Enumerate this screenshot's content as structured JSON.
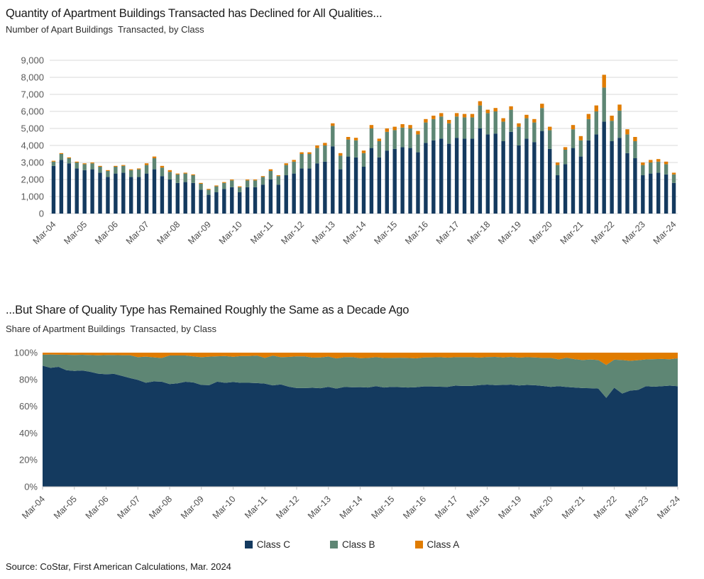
{
  "colors": {
    "class_c": "#143A5F",
    "class_b": "#5E8674",
    "class_a": "#E07C00",
    "gridline": "#D9D9D9",
    "axis_line": "#BFBFBF",
    "axis_text": "#595959",
    "tick_text": "#4D4D4D",
    "title_text": "#1A1A1A"
  },
  "legend": {
    "items": [
      {
        "label": "Class C",
        "color": "#143A5F"
      },
      {
        "label": "Class B",
        "color": "#5E8674"
      },
      {
        "label": "Class A",
        "color": "#E07C00"
      }
    ]
  },
  "source": {
    "text": "Source: CoStar, First American Calculations, Mar. 2024"
  },
  "chart_data": [
    {
      "type": "bar",
      "stacked": true,
      "title": "Quantity of Apartment Buildings Transacted has Declined for All Qualities...",
      "subtitle": "Number of Apart Buildings  Transacted, by Class",
      "ylim": [
        0,
        9000
      ],
      "ytick_step": 1000,
      "grid": true,
      "legend_position": "shared-bottom",
      "x": [
        "Mar-04",
        "Jun-04",
        "Sep-04",
        "Dec-04",
        "Mar-05",
        "Jun-05",
        "Sep-05",
        "Dec-05",
        "Mar-06",
        "Jun-06",
        "Sep-06",
        "Dec-06",
        "Mar-07",
        "Jun-07",
        "Sep-07",
        "Dec-07",
        "Mar-08",
        "Jun-08",
        "Sep-08",
        "Dec-08",
        "Mar-09",
        "Jun-09",
        "Sep-09",
        "Dec-09",
        "Mar-10",
        "Jun-10",
        "Sep-10",
        "Dec-10",
        "Mar-11",
        "Jun-11",
        "Sep-11",
        "Dec-11",
        "Mar-12",
        "Jun-12",
        "Sep-12",
        "Dec-12",
        "Mar-13",
        "Jun-13",
        "Sep-13",
        "Dec-13",
        "Mar-14",
        "Jun-14",
        "Sep-14",
        "Dec-14",
        "Mar-15",
        "Jun-15",
        "Sep-15",
        "Dec-15",
        "Mar-16",
        "Jun-16",
        "Sep-16",
        "Dec-16",
        "Mar-17",
        "Jun-17",
        "Sep-17",
        "Dec-17",
        "Mar-18",
        "Jun-18",
        "Sep-18",
        "Dec-18",
        "Mar-19",
        "Jun-19",
        "Sep-19",
        "Dec-19",
        "Mar-20",
        "Jun-20",
        "Sep-20",
        "Dec-20",
        "Mar-21",
        "Jun-21",
        "Sep-21",
        "Dec-21",
        "Mar-22",
        "Jun-22",
        "Sep-22",
        "Dec-22",
        "Mar-23",
        "Jun-23",
        "Sep-23",
        "Dec-23",
        "Mar-24"
      ],
      "x_tick_labels": [
        "Mar-04",
        "Mar-05",
        "Mar-06",
        "Mar-07",
        "Mar-08",
        "Mar-09",
        "Mar-10",
        "Mar-11",
        "Mar-12",
        "Mar-13",
        "Mar-14",
        "Mar-15",
        "Mar-16",
        "Mar-17",
        "Mar-18",
        "Mar-19",
        "Mar-20",
        "Mar-21",
        "Mar-22",
        "Mar-23",
        "Mar-24"
      ],
      "series": [
        {
          "name": "Class C",
          "color": "#143A5F",
          "values": [
            2800,
            3150,
            2950,
            2650,
            2550,
            2600,
            2400,
            2150,
            2350,
            2400,
            2150,
            2150,
            2350,
            2600,
            2200,
            2000,
            1800,
            1850,
            1800,
            1400,
            1100,
            1250,
            1450,
            1550,
            1250,
            1550,
            1550,
            1700,
            2000,
            1700,
            2250,
            2350,
            2650,
            2650,
            2950,
            3050,
            3950,
            2600,
            3350,
            3300,
            2750,
            3850,
            3300,
            3700,
            3800,
            3900,
            3850,
            3600,
            4150,
            4300,
            4400,
            4100,
            4450,
            4400,
            4400,
            5000,
            4650,
            4700,
            4250,
            4800,
            4000,
            4400,
            4200,
            4850,
            3800,
            2250,
            2900,
            3850,
            3350,
            4300,
            4650,
            5400,
            4250,
            4450,
            3550,
            3250,
            2250,
            2350,
            2400,
            2300,
            1800
          ]
        },
        {
          "name": "Class B",
          "color": "#5E8674",
          "values": [
            250,
            350,
            300,
            350,
            350,
            350,
            350,
            350,
            400,
            400,
            400,
            450,
            500,
            650,
            500,
            450,
            500,
            500,
            450,
            350,
            300,
            350,
            350,
            400,
            300,
            400,
            400,
            450,
            500,
            500,
            600,
            700,
            850,
            850,
            900,
            950,
            1200,
            800,
            1000,
            1000,
            800,
            1150,
            950,
            1100,
            1100,
            1150,
            1150,
            1050,
            1200,
            1250,
            1300,
            1200,
            1250,
            1250,
            1250,
            1350,
            1250,
            1300,
            1150,
            1300,
            1100,
            1200,
            1150,
            1350,
            1100,
            600,
            850,
            1100,
            950,
            1250,
            1350,
            2000,
            1200,
            1600,
            1100,
            1000,
            600,
            650,
            650,
            600,
            500
          ]
        },
        {
          "name": "Class A",
          "color": "#E07C00",
          "values": [
            50,
            50,
            50,
            50,
            50,
            50,
            50,
            50,
            50,
            50,
            50,
            50,
            100,
            100,
            100,
            100,
            50,
            50,
            50,
            50,
            50,
            50,
            50,
            50,
            50,
            50,
            50,
            50,
            100,
            50,
            100,
            100,
            100,
            100,
            150,
            150,
            150,
            150,
            150,
            150,
            150,
            200,
            150,
            200,
            200,
            200,
            200,
            200,
            200,
            200,
            200,
            200,
            200,
            200,
            200,
            250,
            200,
            200,
            200,
            200,
            200,
            200,
            200,
            250,
            200,
            150,
            150,
            250,
            250,
            300,
            350,
            750,
            300,
            350,
            300,
            250,
            150,
            150,
            150,
            150,
            100
          ]
        }
      ]
    },
    {
      "type": "area",
      "stacked": true,
      "normalized": true,
      "units": "%",
      "title": "...But Share of Quality Type has Remained Roughly the Same as a Decade Ago",
      "subtitle": "Share of Apartment Buildings  Transacted, by Class",
      "ylim": [
        0,
        100
      ],
      "ytick_step": 20,
      "grid": false,
      "legend_position": "shared-bottom",
      "x": [
        "Mar-04",
        "Jun-04",
        "Sep-04",
        "Dec-04",
        "Mar-05",
        "Jun-05",
        "Sep-05",
        "Dec-05",
        "Mar-06",
        "Jun-06",
        "Sep-06",
        "Dec-06",
        "Mar-07",
        "Jun-07",
        "Sep-07",
        "Dec-07",
        "Mar-08",
        "Jun-08",
        "Sep-08",
        "Dec-08",
        "Mar-09",
        "Jun-09",
        "Sep-09",
        "Dec-09",
        "Mar-10",
        "Jun-10",
        "Sep-10",
        "Dec-10",
        "Mar-11",
        "Jun-11",
        "Sep-11",
        "Dec-11",
        "Mar-12",
        "Jun-12",
        "Sep-12",
        "Dec-12",
        "Mar-13",
        "Jun-13",
        "Sep-13",
        "Dec-13",
        "Mar-14",
        "Jun-14",
        "Sep-14",
        "Dec-14",
        "Mar-15",
        "Jun-15",
        "Sep-15",
        "Dec-15",
        "Mar-16",
        "Jun-16",
        "Sep-16",
        "Dec-16",
        "Mar-17",
        "Jun-17",
        "Sep-17",
        "Dec-17",
        "Mar-18",
        "Jun-18",
        "Sep-18",
        "Dec-18",
        "Mar-19",
        "Jun-19",
        "Sep-19",
        "Dec-19",
        "Mar-20",
        "Jun-20",
        "Sep-20",
        "Dec-20",
        "Mar-21",
        "Jun-21",
        "Sep-21",
        "Dec-21",
        "Mar-22",
        "Jun-22",
        "Sep-22",
        "Dec-22",
        "Mar-23",
        "Jun-23",
        "Sep-23",
        "Dec-23",
        "Mar-24"
      ],
      "x_tick_labels": [
        "Mar-04",
        "Mar-05",
        "Mar-06",
        "Mar-07",
        "Mar-08",
        "Mar-09",
        "Mar-10",
        "Mar-11",
        "Mar-12",
        "Mar-13",
        "Mar-14",
        "Mar-15",
        "Mar-16",
        "Mar-17",
        "Mar-18",
        "Mar-19",
        "Mar-20",
        "Mar-21",
        "Mar-22",
        "Mar-23",
        "Mar-24"
      ],
      "series": [
        {
          "name": "Class C",
          "color": "#143A5F",
          "values": [
            90.3,
            88.7,
            89.4,
            86.9,
            86.4,
            86.7,
            85.7,
            84.3,
            83.9,
            84.2,
            82.7,
            81.1,
            79.7,
            77.6,
            78.6,
            78.4,
            76.6,
            77.1,
            78.3,
            77.8,
            75.9,
            75.8,
            78.4,
            77.5,
            78.1,
            77.5,
            77.5,
            77.3,
            76.9,
            75.6,
            76.3,
            74.6,
            73.6,
            73.6,
            73.8,
            73.5,
            74.5,
            73.2,
            74.4,
            74.2,
            74.3,
            74.0,
            75.0,
            74.0,
            74.5,
            74.3,
            74.0,
            74.2,
            74.8,
            74.8,
            74.6,
            74.5,
            75.4,
            75.2,
            75.2,
            75.8,
            76.2,
            75.8,
            75.9,
            76.2,
            75.5,
            75.9,
            75.7,
            75.2,
            74.5,
            75.0,
            74.4,
            74.0,
            73.6,
            73.5,
            73.2,
            66.3,
            73.9,
            69.5,
            71.7,
            72.2,
            75.0,
            74.6,
            75.0,
            75.4,
            75.0
          ]
        },
        {
          "name": "Class B",
          "color": "#5E8674",
          "values": [
            8.1,
            9.9,
            9.1,
            11.5,
            11.9,
            11.7,
            12.5,
            13.7,
            14.3,
            14.0,
            15.4,
            17.0,
            16.9,
            19.4,
            17.9,
            17.6,
            21.3,
            20.8,
            19.6,
            19.4,
            20.7,
            21.2,
            18.9,
            20.0,
            18.8,
            20.0,
            20.0,
            20.5,
            19.2,
            22.2,
            20.3,
            22.2,
            23.6,
            23.6,
            22.5,
            22.9,
            22.6,
            22.5,
            22.2,
            22.5,
            21.6,
            22.1,
            21.6,
            22.0,
            21.6,
            21.9,
            22.1,
            21.6,
            21.6,
            21.7,
            22.0,
            21.8,
            21.2,
            21.4,
            21.4,
            20.5,
            20.5,
            21.0,
            20.5,
            20.6,
            20.8,
            20.7,
            20.7,
            20.9,
            21.6,
            20.0,
            21.8,
            21.2,
            20.9,
            21.4,
            21.3,
            24.5,
            20.9,
            25.0,
            22.2,
            22.2,
            20.0,
            20.6,
            20.3,
            19.7,
            20.8
          ]
        },
        {
          "name": "Class A",
          "color": "#E07C00",
          "values": [
            1.6,
            1.4,
            1.5,
            1.6,
            1.7,
            1.6,
            1.8,
            2.0,
            1.8,
            1.8,
            1.9,
            1.9,
            3.4,
            3.0,
            3.5,
            4.0,
            2.1,
            2.1,
            2.1,
            2.8,
            3.4,
            3.0,
            2.7,
            2.5,
            3.1,
            2.5,
            2.5,
            2.2,
            3.9,
            2.2,
            3.4,
            3.2,
            2.8,
            2.8,
            3.7,
            3.6,
            2.9,
            4.3,
            3.4,
            3.3,
            4.1,
            3.9,
            3.4,
            4.0,
            3.9,
            3.8,
            3.9,
            4.2,
            3.6,
            3.5,
            3.4,
            3.7,
            3.4,
            3.4,
            3.4,
            3.7,
            3.3,
            3.2,
            3.6,
            3.2,
            3.7,
            3.4,
            3.6,
            3.9,
            3.9,
            5.0,
            3.8,
            4.8,
            5.5,
            5.1,
            5.5,
            9.2,
            5.2,
            5.5,
            6.1,
            5.6,
            5.0,
            4.8,
            4.7,
            4.9,
            4.2
          ]
        }
      ]
    }
  ]
}
